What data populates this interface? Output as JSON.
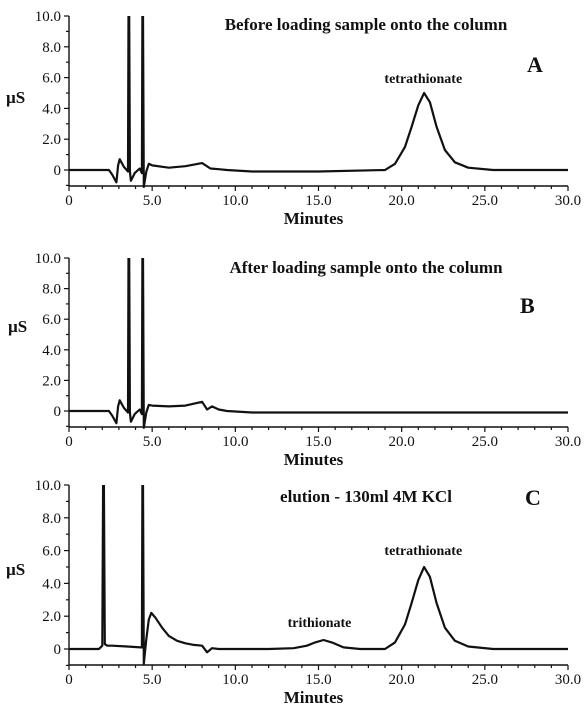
{
  "chart_data": [
    {
      "type": "line",
      "panel": "A",
      "title": "Before loading sample onto the column",
      "xlabel": "Minutes",
      "ylabel": "µS",
      "xlim": [
        0,
        30
      ],
      "ylim": [
        -1,
        10
      ],
      "xticks": [
        "0",
        "5.0",
        "10.0",
        "15.0",
        "20.0",
        "25.0",
        "30.0"
      ],
      "yticks": [
        "0",
        "2.0",
        "4.0",
        "6.0",
        "8.0",
        "10.0"
      ],
      "annotations": [
        {
          "text": "tetrathionate",
          "x": 21.3,
          "y": 5.0
        }
      ],
      "series": [
        {
          "x": [
            0,
            2.4,
            2.6,
            2.85,
            2.95,
            3.05,
            3.3,
            3.55,
            3.58,
            3.62,
            3.66,
            3.72,
            3.95,
            4.25,
            4.38,
            4.41,
            4.45,
            4.5,
            4.65,
            4.8,
            5.0,
            6.0,
            7.0,
            8.0,
            8.5,
            9.0,
            9.5,
            11,
            15,
            19,
            19.6,
            20.2,
            20.6,
            21.0,
            21.35,
            21.7,
            22.1,
            22.6,
            23.2,
            24.0,
            25.5,
            30
          ],
          "y": [
            0,
            0,
            -0.3,
            -0.8,
            0.3,
            0.7,
            0.2,
            -0.1,
            11,
            11,
            -0.1,
            -0.7,
            -0.2,
            0.1,
            -0.2,
            11,
            11,
            -1.1,
            -0.1,
            0.4,
            0.3,
            0.15,
            0.25,
            0.45,
            0.1,
            0.05,
            0,
            -0.1,
            -0.1,
            0,
            0.4,
            1.5,
            2.8,
            4.2,
            5.0,
            4.4,
            2.8,
            1.3,
            0.5,
            0.15,
            0,
            0
          ]
        }
      ]
    },
    {
      "type": "line",
      "panel": "B",
      "title": "After loading sample onto the column",
      "xlabel": "Minutes",
      "ylabel": "µS",
      "xlim": [
        0,
        30
      ],
      "ylim": [
        -1,
        10
      ],
      "xticks": [
        "0",
        "5.0",
        "10.0",
        "15.0",
        "20.0",
        "25.0",
        "30.0"
      ],
      "yticks": [
        "0",
        "2.0",
        "4.0",
        "6.0",
        "8.0",
        "10.0"
      ],
      "annotations": [],
      "series": [
        {
          "x": [
            0,
            2.4,
            2.6,
            2.85,
            2.95,
            3.05,
            3.3,
            3.55,
            3.58,
            3.62,
            3.66,
            3.72,
            3.95,
            4.25,
            4.38,
            4.41,
            4.45,
            4.5,
            4.65,
            4.8,
            5.0,
            6.0,
            7.0,
            8.0,
            8.3,
            8.6,
            9.0,
            9.5,
            11,
            15,
            20,
            25,
            30
          ],
          "y": [
            0,
            0,
            -0.3,
            -0.8,
            0.3,
            0.7,
            0.2,
            -0.1,
            11,
            11,
            -0.1,
            -0.7,
            -0.2,
            0.1,
            -0.2,
            11,
            11,
            -1.1,
            -0.1,
            0.4,
            0.35,
            0.3,
            0.35,
            0.6,
            0.1,
            0.3,
            0.1,
            0,
            -0.1,
            -0.1,
            -0.1,
            -0.1,
            -0.1
          ]
        }
      ]
    },
    {
      "type": "line",
      "panel": "C",
      "title": "elution - 130ml 4M KCl",
      "xlabel": "Minutes",
      "ylabel": "µS",
      "xlim": [
        0,
        30
      ],
      "ylim": [
        -1,
        10
      ],
      "xticks": [
        "0",
        "5.0",
        "10.0",
        "15.0",
        "20.0",
        "25.0",
        "30.0"
      ],
      "yticks": [
        "0",
        "2.0",
        "4.0",
        "6.0",
        "8.0",
        "10.0"
      ],
      "annotations": [
        {
          "text": "trithionate",
          "x": 15.3,
          "y": 0.6
        },
        {
          "text": "tetrathionate",
          "x": 21.3,
          "y": 5.0
        }
      ],
      "series": [
        {
          "x": [
            0,
            1.8,
            2.0,
            2.05,
            2.1,
            2.15,
            2.3,
            2.6,
            3.5,
            4.3,
            4.38,
            4.41,
            4.45,
            4.5,
            4.65,
            4.8,
            4.95,
            5.2,
            5.6,
            6.0,
            6.5,
            7.0,
            7.5,
            8.0,
            8.3,
            8.6,
            9.0,
            10,
            12,
            13.5,
            14.3,
            14.8,
            15.3,
            15.8,
            16.5,
            17.5,
            19,
            19.6,
            20.2,
            20.6,
            21.0,
            21.35,
            21.7,
            22.1,
            22.6,
            23.2,
            24.0,
            25.5,
            30
          ],
          "y": [
            0,
            0,
            0.2,
            11,
            11,
            0.3,
            0.2,
            0.2,
            0.15,
            0.1,
            0.1,
            11,
            11,
            -0.9,
            0.6,
            1.8,
            2.2,
            1.9,
            1.3,
            0.8,
            0.5,
            0.35,
            0.25,
            0.2,
            -0.2,
            0.05,
            0,
            0,
            0,
            0.05,
            0.2,
            0.4,
            0.55,
            0.4,
            0.1,
            0,
            0,
            0.4,
            1.5,
            2.8,
            4.2,
            5.0,
            4.4,
            2.8,
            1.3,
            0.5,
            0.15,
            0,
            0
          ]
        }
      ]
    }
  ]
}
